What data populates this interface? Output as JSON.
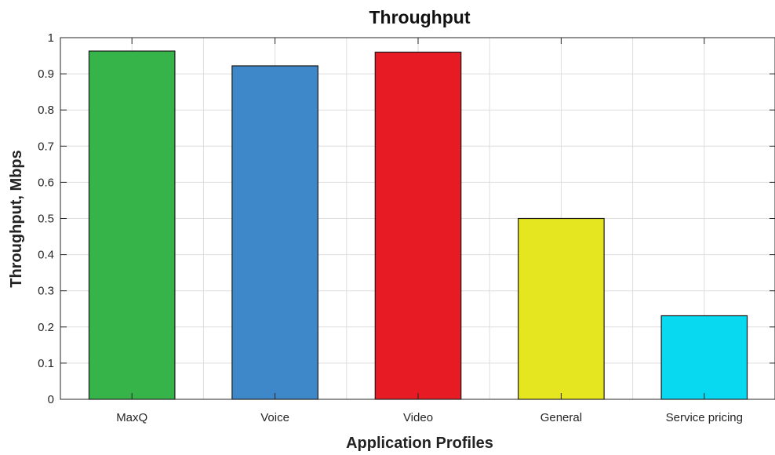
{
  "chart_data": {
    "type": "bar",
    "title": "Throughput",
    "xlabel": "Application Profiles",
    "ylabel": "Throughput, Mbps",
    "categories": [
      "MaxQ",
      "Voice",
      "Video",
      "General",
      "Service pricing"
    ],
    "values": [
      0.963,
      0.922,
      0.96,
      0.5,
      0.231
    ],
    "colors": [
      "#36b44a",
      "#3e88c9",
      "#e71b24",
      "#e5e620",
      "#08d8f0"
    ],
    "ylim": [
      0,
      1
    ],
    "yticks": [
      0,
      0.1,
      0.2,
      0.3,
      0.4,
      0.5,
      0.6,
      0.7,
      0.8,
      0.9,
      1
    ],
    "ytick_labels": [
      "0",
      "0.1",
      "0.2",
      "0.3",
      "0.4",
      "0.5",
      "0.6",
      "0.7",
      "0.8",
      "0.9",
      "1"
    ],
    "grid": true,
    "legend": "none"
  }
}
